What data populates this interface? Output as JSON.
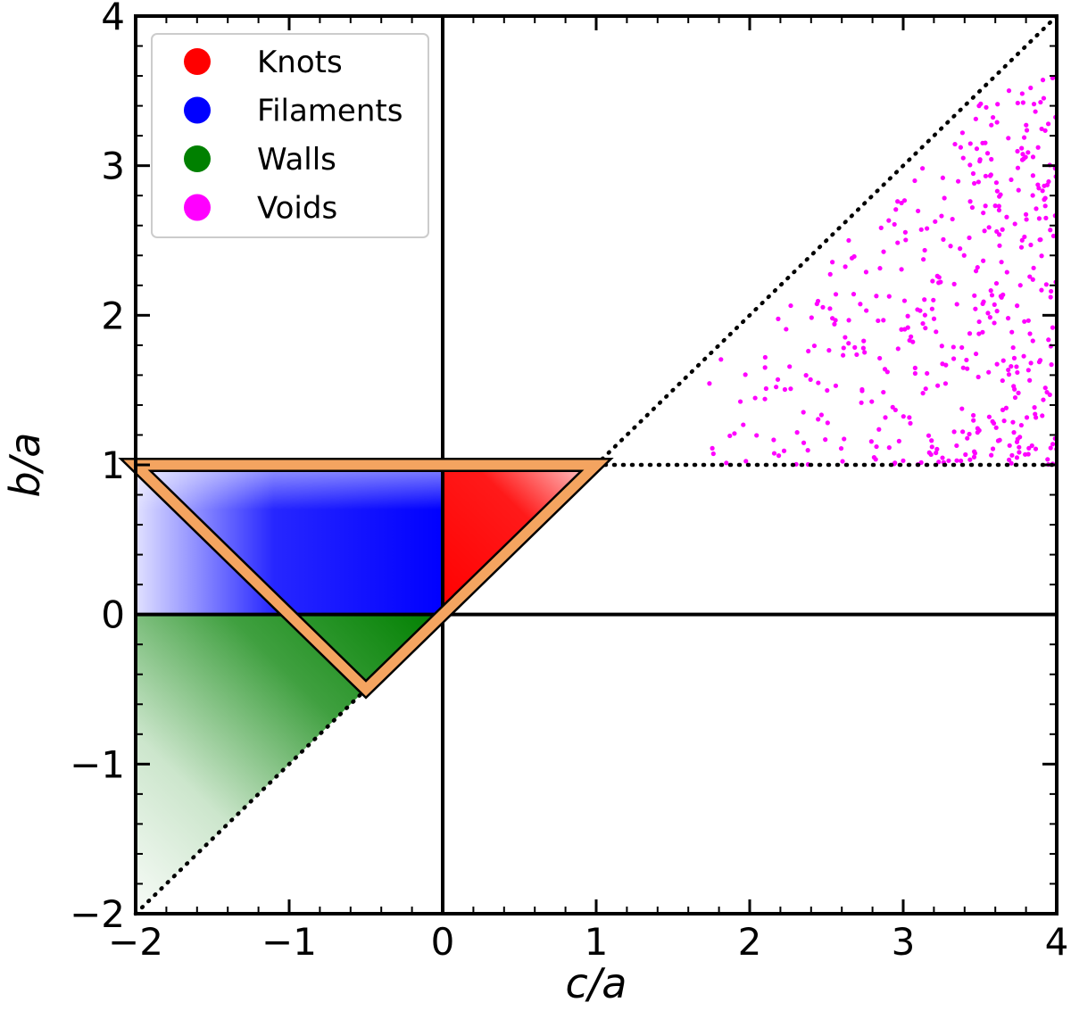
{
  "chart_data": {
    "type": "scatter",
    "xlabel": "c/a",
    "ylabel": "b/a",
    "xlim": [
      -2,
      4
    ],
    "ylim": [
      -2,
      4
    ],
    "xticks": [
      "−2",
      "−1",
      "0",
      "1",
      "2",
      "3",
      "4"
    ],
    "yticks": [
      "−2",
      "−1",
      "0",
      "1",
      "2",
      "3",
      "4"
    ],
    "grid": false,
    "legend_position": "top-left",
    "series": [
      {
        "name": "Knots",
        "color": "#ff0000",
        "region": "0 ≤ c/a ≤ b/a ≤ 1"
      },
      {
        "name": "Filaments",
        "color": "#0000ff",
        "region": "c/a ≤ 0 ≤ b/a ≤ 1"
      },
      {
        "name": "Walls",
        "color": "#008000",
        "region": "c/a ≤ b/a ≤ 0"
      },
      {
        "name": "Voids",
        "color": "#ff00ff",
        "region": "1 ≤ b/a ≤ c/a"
      }
    ],
    "reference_lines": [
      {
        "style": "solid",
        "x": 0
      },
      {
        "style": "solid",
        "y": 0
      },
      {
        "style": "dotted",
        "from": [
          -2,
          -2
        ],
        "to": [
          4,
          4
        ]
      },
      {
        "style": "dotted",
        "from": [
          1,
          1
        ],
        "to": [
          4,
          1
        ]
      }
    ],
    "triangle": {
      "color": "#f4a460",
      "vertices": [
        [
          -2,
          1
        ],
        [
          1,
          1
        ],
        [
          -0.5,
          -0.5
        ]
      ]
    }
  }
}
